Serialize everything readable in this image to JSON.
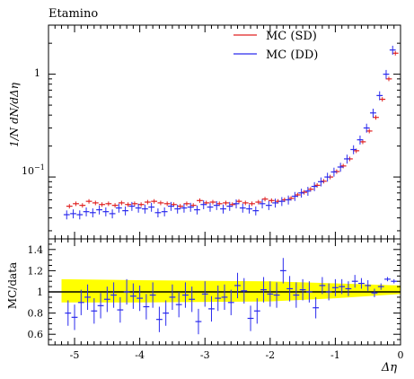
{
  "chart_data": [
    {
      "type": "scatter",
      "title": "Etamino",
      "xlabel": "",
      "ylabel": "1/N dN/dΔη",
      "yscale": "log",
      "xlim": [
        -5.4,
        0
      ],
      "ylim": [
        0.025,
        3
      ],
      "ytick_labels": [
        "10",
        "−1",
        "1"
      ],
      "legend": {
        "position": "top-right",
        "entries": [
          "MC (SD)",
          "MC (DD)"
        ]
      },
      "colors": {
        "MC (SD)": "#e02020",
        "MC (DD)": "#2a2aee",
        "band": "#ffff00"
      },
      "grid": false,
      "series": [
        {
          "name": "MC (SD)",
          "x": [
            -5.1,
            -5.0,
            -4.9,
            -4.8,
            -4.7,
            -4.6,
            -4.5,
            -4.4,
            -4.3,
            -4.2,
            -4.1,
            -4.0,
            -3.9,
            -3.8,
            -3.7,
            -3.6,
            -3.5,
            -3.4,
            -3.3,
            -3.2,
            -3.1,
            -3.0,
            -2.9,
            -2.8,
            -2.7,
            -2.6,
            -2.5,
            -2.4,
            -2.3,
            -2.2,
            -2.1,
            -2.0,
            -1.9,
            -1.8,
            -1.7,
            -1.6,
            -1.5,
            -1.4,
            -1.3,
            -1.2,
            -1.1,
            -1.0,
            -0.9,
            -0.8,
            -0.7,
            -0.6,
            -0.5,
            -0.4,
            -0.3,
            -0.2,
            -0.1
          ],
          "y": [
            0.052,
            0.055,
            0.053,
            0.058,
            0.056,
            0.054,
            0.055,
            0.053,
            0.056,
            0.054,
            0.055,
            0.054,
            0.057,
            0.058,
            0.056,
            0.055,
            0.054,
            0.052,
            0.055,
            0.053,
            0.059,
            0.056,
            0.057,
            0.055,
            0.056,
            0.054,
            0.058,
            0.056,
            0.055,
            0.057,
            0.061,
            0.059,
            0.058,
            0.06,
            0.062,
            0.067,
            0.071,
            0.076,
            0.083,
            0.091,
            0.1,
            0.113,
            0.128,
            0.15,
            0.18,
            0.22,
            0.28,
            0.38,
            0.57,
            0.9,
            1.6
          ]
        },
        {
          "name": "MC (DD)",
          "x": [
            -5.1,
            -5.0,
            -4.9,
            -4.8,
            -4.7,
            -4.6,
            -4.5,
            -4.4,
            -4.3,
            -4.2,
            -4.1,
            -4.0,
            -3.9,
            -3.8,
            -3.7,
            -3.6,
            -3.5,
            -3.4,
            -3.3,
            -3.2,
            -3.1,
            -3.0,
            -2.9,
            -2.8,
            -2.7,
            -2.6,
            -2.5,
            -2.4,
            -2.3,
            -2.2,
            -2.1,
            -2.0,
            -1.9,
            -1.8,
            -1.7,
            -1.6,
            -1.5,
            -1.4,
            -1.3,
            -1.2,
            -1.1,
            -1.0,
            -0.9,
            -0.8,
            -0.7,
            -0.6,
            -0.5,
            -0.4,
            -0.3,
            -0.2,
            -0.1
          ],
          "y": [
            0.043,
            0.044,
            0.043,
            0.046,
            0.045,
            0.048,
            0.046,
            0.044,
            0.05,
            0.047,
            0.052,
            0.05,
            0.049,
            0.051,
            0.045,
            0.046,
            0.052,
            0.049,
            0.05,
            0.051,
            0.048,
            0.054,
            0.051,
            0.053,
            0.049,
            0.052,
            0.055,
            0.05,
            0.049,
            0.047,
            0.055,
            0.053,
            0.056,
            0.058,
            0.06,
            0.065,
            0.07,
            0.073,
            0.081,
            0.09,
            0.1,
            0.112,
            0.125,
            0.15,
            0.185,
            0.23,
            0.3,
            0.42,
            0.62,
            1.0,
            1.72
          ]
        }
      ]
    },
    {
      "type": "scatter",
      "title": "",
      "xlabel": "Δη",
      "ylabel": "MC/data",
      "xlim": [
        -5.4,
        0
      ],
      "ylim": [
        0.5,
        1.5
      ],
      "yticks": [
        0.6,
        0.8,
        1,
        1.2,
        1.4
      ],
      "ytick_labels": [
        "0.6",
        "0.8",
        "1",
        "1.2",
        "1.4"
      ],
      "xticks": [
        -5,
        -4,
        -3,
        -2,
        -1,
        0
      ],
      "xtick_labels": [
        "-5",
        "-4",
        "-3",
        "-2",
        "-1",
        "0"
      ],
      "grid": false,
      "reference_line": 1,
      "band": {
        "x": [
          -5.2,
          -4.0,
          -2.0,
          -1.0,
          0
        ],
        "lower": [
          0.9,
          0.9,
          0.91,
          0.94,
          0.98
        ],
        "upper": [
          1.12,
          1.11,
          1.1,
          1.08,
          1.06
        ]
      },
      "series": [
        {
          "name": "MC (DD)",
          "x": [
            -5.1,
            -5.0,
            -4.9,
            -4.8,
            -4.7,
            -4.6,
            -4.5,
            -4.4,
            -4.3,
            -4.2,
            -4.1,
            -4.0,
            -3.9,
            -3.8,
            -3.7,
            -3.6,
            -3.5,
            -3.4,
            -3.3,
            -3.2,
            -3.1,
            -3.0,
            -2.9,
            -2.8,
            -2.7,
            -2.6,
            -2.5,
            -2.4,
            -2.3,
            -2.2,
            -2.1,
            -2.0,
            -1.9,
            -1.8,
            -1.7,
            -1.6,
            -1.5,
            -1.4,
            -1.3,
            -1.2,
            -1.1,
            -1.0,
            -0.9,
            -0.8,
            -0.7,
            -0.6,
            -0.5,
            -0.4,
            -0.3,
            -0.2,
            -0.1
          ],
          "y": [
            0.8,
            0.76,
            0.9,
            0.95,
            0.82,
            0.87,
            0.93,
            0.97,
            0.83,
            1.0,
            0.96,
            0.94,
            0.86,
            0.97,
            0.74,
            0.8,
            0.95,
            0.88,
            0.97,
            0.93,
            0.72,
            0.98,
            0.84,
            0.94,
            0.95,
            0.9,
            1.06,
            1.01,
            0.75,
            0.82,
            1.02,
            0.98,
            0.97,
            1.2,
            1.03,
            0.97,
            1.02,
            1.0,
            0.85,
            1.06,
            1.0,
            1.04,
            1.05,
            1.03,
            1.1,
            1.08,
            1.06,
            0.99,
            1.05,
            1.12,
            1.1
          ],
          "err": [
            0.12,
            0.12,
            0.12,
            0.12,
            0.12,
            0.12,
            0.12,
            0.12,
            0.12,
            0.12,
            0.12,
            0.12,
            0.12,
            0.12,
            0.12,
            0.12,
            0.12,
            0.12,
            0.12,
            0.12,
            0.12,
            0.12,
            0.12,
            0.12,
            0.12,
            0.12,
            0.12,
            0.12,
            0.12,
            0.12,
            0.12,
            0.12,
            0.12,
            0.12,
            0.12,
            0.12,
            0.1,
            0.1,
            0.1,
            0.08,
            0.08,
            0.08,
            0.07,
            0.07,
            0.06,
            0.05,
            0.05,
            0.04,
            0.03,
            0.02,
            0.02
          ]
        }
      ]
    }
  ]
}
